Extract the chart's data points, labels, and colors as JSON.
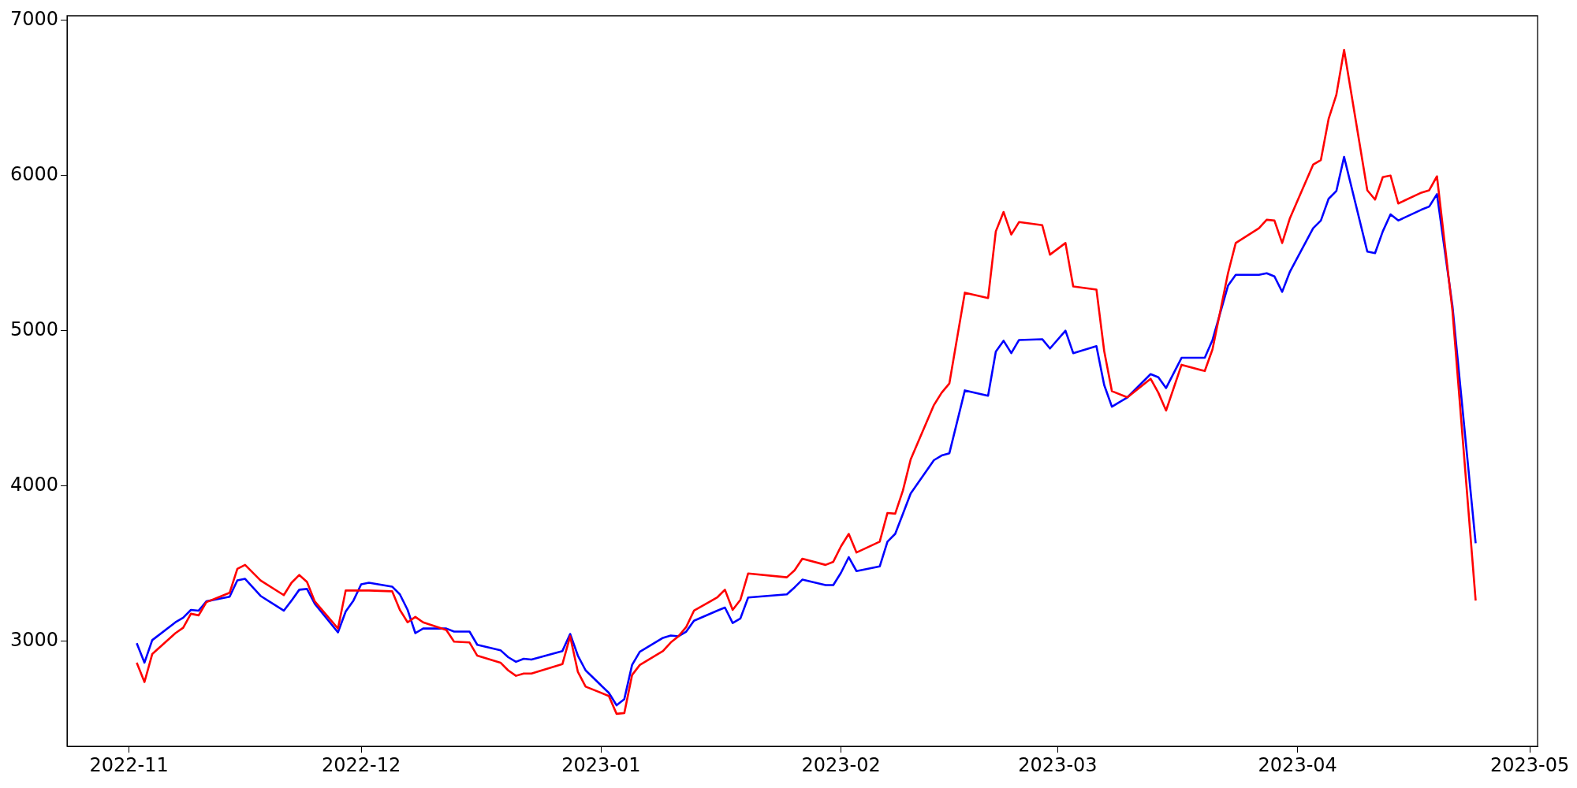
{
  "chart_data": {
    "type": "line",
    "x": [
      "2022-11-02",
      "2022-11-03",
      "2022-11-04",
      "2022-11-07",
      "2022-11-08",
      "2022-11-09",
      "2022-11-10",
      "2022-11-11",
      "2022-11-14",
      "2022-11-15",
      "2022-11-16",
      "2022-11-18",
      "2022-11-21",
      "2022-11-22",
      "2022-11-23",
      "2022-11-24",
      "2022-11-25",
      "2022-11-28",
      "2022-11-29",
      "2022-11-30",
      "2022-12-01",
      "2022-12-02",
      "2022-12-05",
      "2022-12-06",
      "2022-12-07",
      "2022-12-08",
      "2022-12-09",
      "2022-12-12",
      "2022-12-13",
      "2022-12-15",
      "2022-12-16",
      "2022-12-19",
      "2022-12-20",
      "2022-12-21",
      "2022-12-22",
      "2022-12-23",
      "2022-12-27",
      "2022-12-28",
      "2022-12-29",
      "2022-12-30",
      "2023-01-02",
      "2023-01-03",
      "2023-01-04",
      "2023-01-05",
      "2023-01-06",
      "2023-01-09",
      "2023-01-10",
      "2023-01-11",
      "2023-01-12",
      "2023-01-13",
      "2023-01-16",
      "2023-01-17",
      "2023-01-18",
      "2023-01-19",
      "2023-01-20",
      "2023-01-25",
      "2023-01-26",
      "2023-01-27",
      "2023-01-30",
      "2023-01-31",
      "2023-02-01",
      "2023-02-02",
      "2023-02-03",
      "2023-02-06",
      "2023-02-07",
      "2023-02-08",
      "2023-02-09",
      "2023-02-10",
      "2023-02-13",
      "2023-02-14",
      "2023-02-15",
      "2023-02-17",
      "2023-02-20",
      "2023-02-21",
      "2023-02-22",
      "2023-02-23",
      "2023-02-24",
      "2023-02-27",
      "2023-02-28",
      "2023-03-02",
      "2023-03-03",
      "2023-03-06",
      "2023-03-07",
      "2023-03-08",
      "2023-03-10",
      "2023-03-13",
      "2023-03-14",
      "2023-03-15",
      "2023-03-17",
      "2023-03-20",
      "2023-03-21",
      "2023-03-23",
      "2023-03-24",
      "2023-03-27",
      "2023-03-28",
      "2023-03-29",
      "2023-03-30",
      "2023-03-31",
      "2023-04-03",
      "2023-04-04",
      "2023-04-05",
      "2023-04-06",
      "2023-04-07",
      "2023-04-10",
      "2023-04-11",
      "2023-04-12",
      "2023-04-13",
      "2023-04-14",
      "2023-04-17",
      "2023-04-18",
      "2023-04-19",
      "2023-04-21",
      "2023-04-24"
    ],
    "series": [
      {
        "color": "#ff0000",
        "values": [
          2860,
          2735,
          2915,
          3050,
          3085,
          3175,
          3165,
          3250,
          3310,
          3465,
          3490,
          3390,
          3295,
          3375,
          3425,
          3380,
          3255,
          3080,
          3325,
          3325,
          3325,
          3325,
          3320,
          3200,
          3120,
          3155,
          3120,
          3070,
          2995,
          2990,
          2905,
          2860,
          2810,
          2775,
          2790,
          2790,
          2850,
          3030,
          2800,
          2705,
          2645,
          2530,
          2535,
          2780,
          2845,
          2935,
          2990,
          3030,
          3090,
          3195,
          3280,
          3330,
          3200,
          3265,
          3435,
          3410,
          3455,
          3530,
          3490,
          3510,
          3610,
          3690,
          3570,
          3640,
          3825,
          3820,
          3970,
          4170,
          4520,
          4600,
          4660,
          5245,
          5210,
          5640,
          5765,
          5620,
          5700,
          5680,
          5490,
          5565,
          5285,
          5265,
          4870,
          4610,
          4570,
          4690,
          4600,
          4485,
          4780,
          4740,
          4880,
          5370,
          5565,
          5660,
          5715,
          5710,
          5565,
          5725,
          6070,
          6100,
          6365,
          6520,
          6810,
          5905,
          5845,
          5990,
          6000,
          5820,
          5890,
          5905,
          5995,
          5130,
          3260
        ]
      },
      {
        "color": "#0000ff",
        "values": [
          2985,
          2860,
          3005,
          3120,
          3150,
          3200,
          3195,
          3255,
          3285,
          3390,
          3400,
          3290,
          3195,
          3260,
          3330,
          3335,
          3240,
          3055,
          3190,
          3260,
          3365,
          3375,
          3350,
          3300,
          3200,
          3050,
          3080,
          3080,
          3060,
          3060,
          2975,
          2940,
          2895,
          2865,
          2885,
          2880,
          2935,
          3045,
          2905,
          2810,
          2665,
          2585,
          2625,
          2845,
          2930,
          3020,
          3035,
          3030,
          3060,
          3130,
          3195,
          3215,
          3115,
          3145,
          3280,
          3300,
          3345,
          3395,
          3360,
          3360,
          3440,
          3540,
          3450,
          3480,
          3640,
          3690,
          3820,
          3950,
          4165,
          4195,
          4210,
          4615,
          4580,
          4865,
          4935,
          4855,
          4940,
          4945,
          4885,
          5000,
          4855,
          4900,
          4650,
          4510,
          4570,
          4720,
          4700,
          4630,
          4825,
          4825,
          4940,
          5290,
          5360,
          5360,
          5370,
          5350,
          5250,
          5380,
          5660,
          5710,
          5850,
          5900,
          6120,
          5510,
          5500,
          5640,
          5750,
          5710,
          5780,
          5800,
          5880,
          5160,
          3630
        ]
      }
    ],
    "xlim": [
      "2022-10-24",
      "2023-05-02"
    ],
    "xticks": [
      {
        "value": "2022-11-01",
        "label": "2022-11"
      },
      {
        "value": "2022-12-01",
        "label": "2022-12"
      },
      {
        "value": "2023-01-01",
        "label": "2023-01"
      },
      {
        "value": "2023-02-01",
        "label": "2023-02"
      },
      {
        "value": "2023-03-01",
        "label": "2023-03"
      },
      {
        "value": "2023-04-01",
        "label": "2023-04"
      },
      {
        "value": "2023-05-01",
        "label": "2023-05"
      }
    ],
    "ylim": [
      2320,
      7030
    ],
    "yticks": [
      3000,
      4000,
      5000,
      6000,
      7000
    ],
    "grid": false,
    "legend": false,
    "marker": "none",
    "line_style": "solid"
  }
}
